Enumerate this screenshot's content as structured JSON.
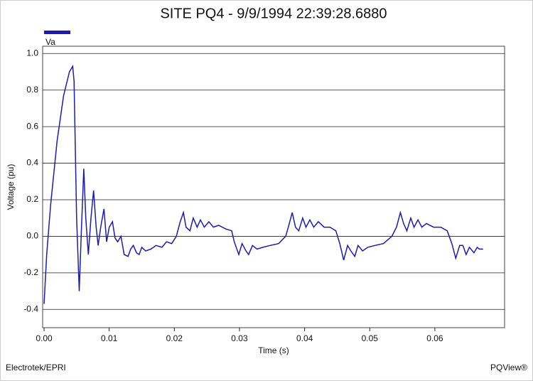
{
  "chart_data": {
    "type": "line",
    "title": "SITE PQ4 - 9/9/1994 22:39:28.6880",
    "x_label": "Time (s)",
    "y_label": "Voltage (pu)",
    "footer_left": "Electrotek/EPRI",
    "footer_right": "PQView®",
    "grid": true,
    "legend": "top-left",
    "xlim": [
      0,
      0.0707
    ],
    "ylim": [
      -0.5,
      1.04
    ],
    "xticks": [
      {
        "value": 0,
        "label": "0.00"
      },
      0.01,
      0.02,
      0.03,
      0.04,
      0.05,
      0.06
    ],
    "yticks": [
      -0.4,
      -0.2,
      {
        "value": 0,
        "label": "0.0"
      },
      0.2,
      0.4,
      0.6,
      0.8,
      {
        "value": 1,
        "label": "1.0"
      }
    ],
    "x": [
      0,
      0.0004,
      0.001,
      0.002,
      0.003,
      0.0039,
      0.0044,
      0.0046,
      0.005,
      0.0054,
      0.0057,
      0.0061,
      0.0064,
      0.0068,
      0.0072,
      0.0076,
      0.008,
      0.0083,
      0.0087,
      0.0092,
      0.0096,
      0.01,
      0.0105,
      0.0109,
      0.0113,
      0.0118,
      0.0123,
      0.0129,
      0.0133,
      0.0137,
      0.0142,
      0.0146,
      0.015,
      0.0156,
      0.0164,
      0.0172,
      0.0181,
      0.0188,
      0.0196,
      0.0203,
      0.0209,
      0.0214,
      0.0218,
      0.0224,
      0.0229,
      0.0235,
      0.024,
      0.0246,
      0.0253,
      0.026,
      0.0268,
      0.0279,
      0.0288,
      0.0292,
      0.0299,
      0.0304,
      0.031,
      0.0314,
      0.032,
      0.0327,
      0.0336,
      0.0347,
      0.036,
      0.0371,
      0.0375,
      0.0381,
      0.0386,
      0.0391,
      0.0397,
      0.0402,
      0.0408,
      0.0414,
      0.0421,
      0.043,
      0.0439,
      0.0448,
      0.0454,
      0.046,
      0.0466,
      0.0471,
      0.0477,
      0.0482,
      0.0489,
      0.0497,
      0.0508,
      0.0521,
      0.0534,
      0.0541,
      0.0547,
      0.0552,
      0.0557,
      0.0563,
      0.0568,
      0.0574,
      0.058,
      0.0587,
      0.0598,
      0.0609,
      0.0619,
      0.0626,
      0.0632,
      0.0638,
      0.0643,
      0.0648,
      0.0653,
      0.066,
      0.0665,
      0.0668,
      0.0674
    ],
    "series": [
      {
        "name": "Va",
        "color": "#1c1cb4",
        "values": [
          -0.37,
          -0.1,
          0.17,
          0.52,
          0.77,
          0.9,
          0.93,
          0.85,
          0.1,
          -0.3,
          0.0,
          0.37,
          0.1,
          -0.1,
          0.1,
          0.25,
          0.05,
          -0.05,
          0.05,
          0.15,
          -0.03,
          0.05,
          0.08,
          -0.01,
          -0.03,
          0.0,
          -0.1,
          -0.11,
          -0.07,
          -0.05,
          -0.09,
          -0.1,
          -0.06,
          -0.08,
          -0.07,
          -0.05,
          -0.06,
          -0.03,
          -0.04,
          0.0,
          0.08,
          0.13,
          0.05,
          0.03,
          0.1,
          0.05,
          0.09,
          0.05,
          0.08,
          0.05,
          0.06,
          0.04,
          0.03,
          -0.03,
          -0.1,
          -0.04,
          -0.08,
          -0.1,
          -0.05,
          -0.07,
          -0.06,
          -0.05,
          -0.04,
          0.0,
          0.05,
          0.13,
          0.05,
          0.03,
          0.1,
          0.05,
          0.09,
          0.05,
          0.08,
          0.05,
          0.05,
          0.03,
          -0.04,
          -0.13,
          -0.05,
          -0.08,
          -0.11,
          -0.05,
          -0.08,
          -0.06,
          -0.05,
          -0.04,
          0.0,
          0.05,
          0.13,
          0.07,
          0.03,
          0.1,
          0.05,
          0.09,
          0.05,
          0.07,
          0.05,
          0.05,
          0.03,
          -0.04,
          -0.12,
          -0.05,
          -0.05,
          -0.1,
          -0.06,
          -0.09,
          -0.06,
          -0.07,
          -0.07
        ]
      }
    ]
  }
}
